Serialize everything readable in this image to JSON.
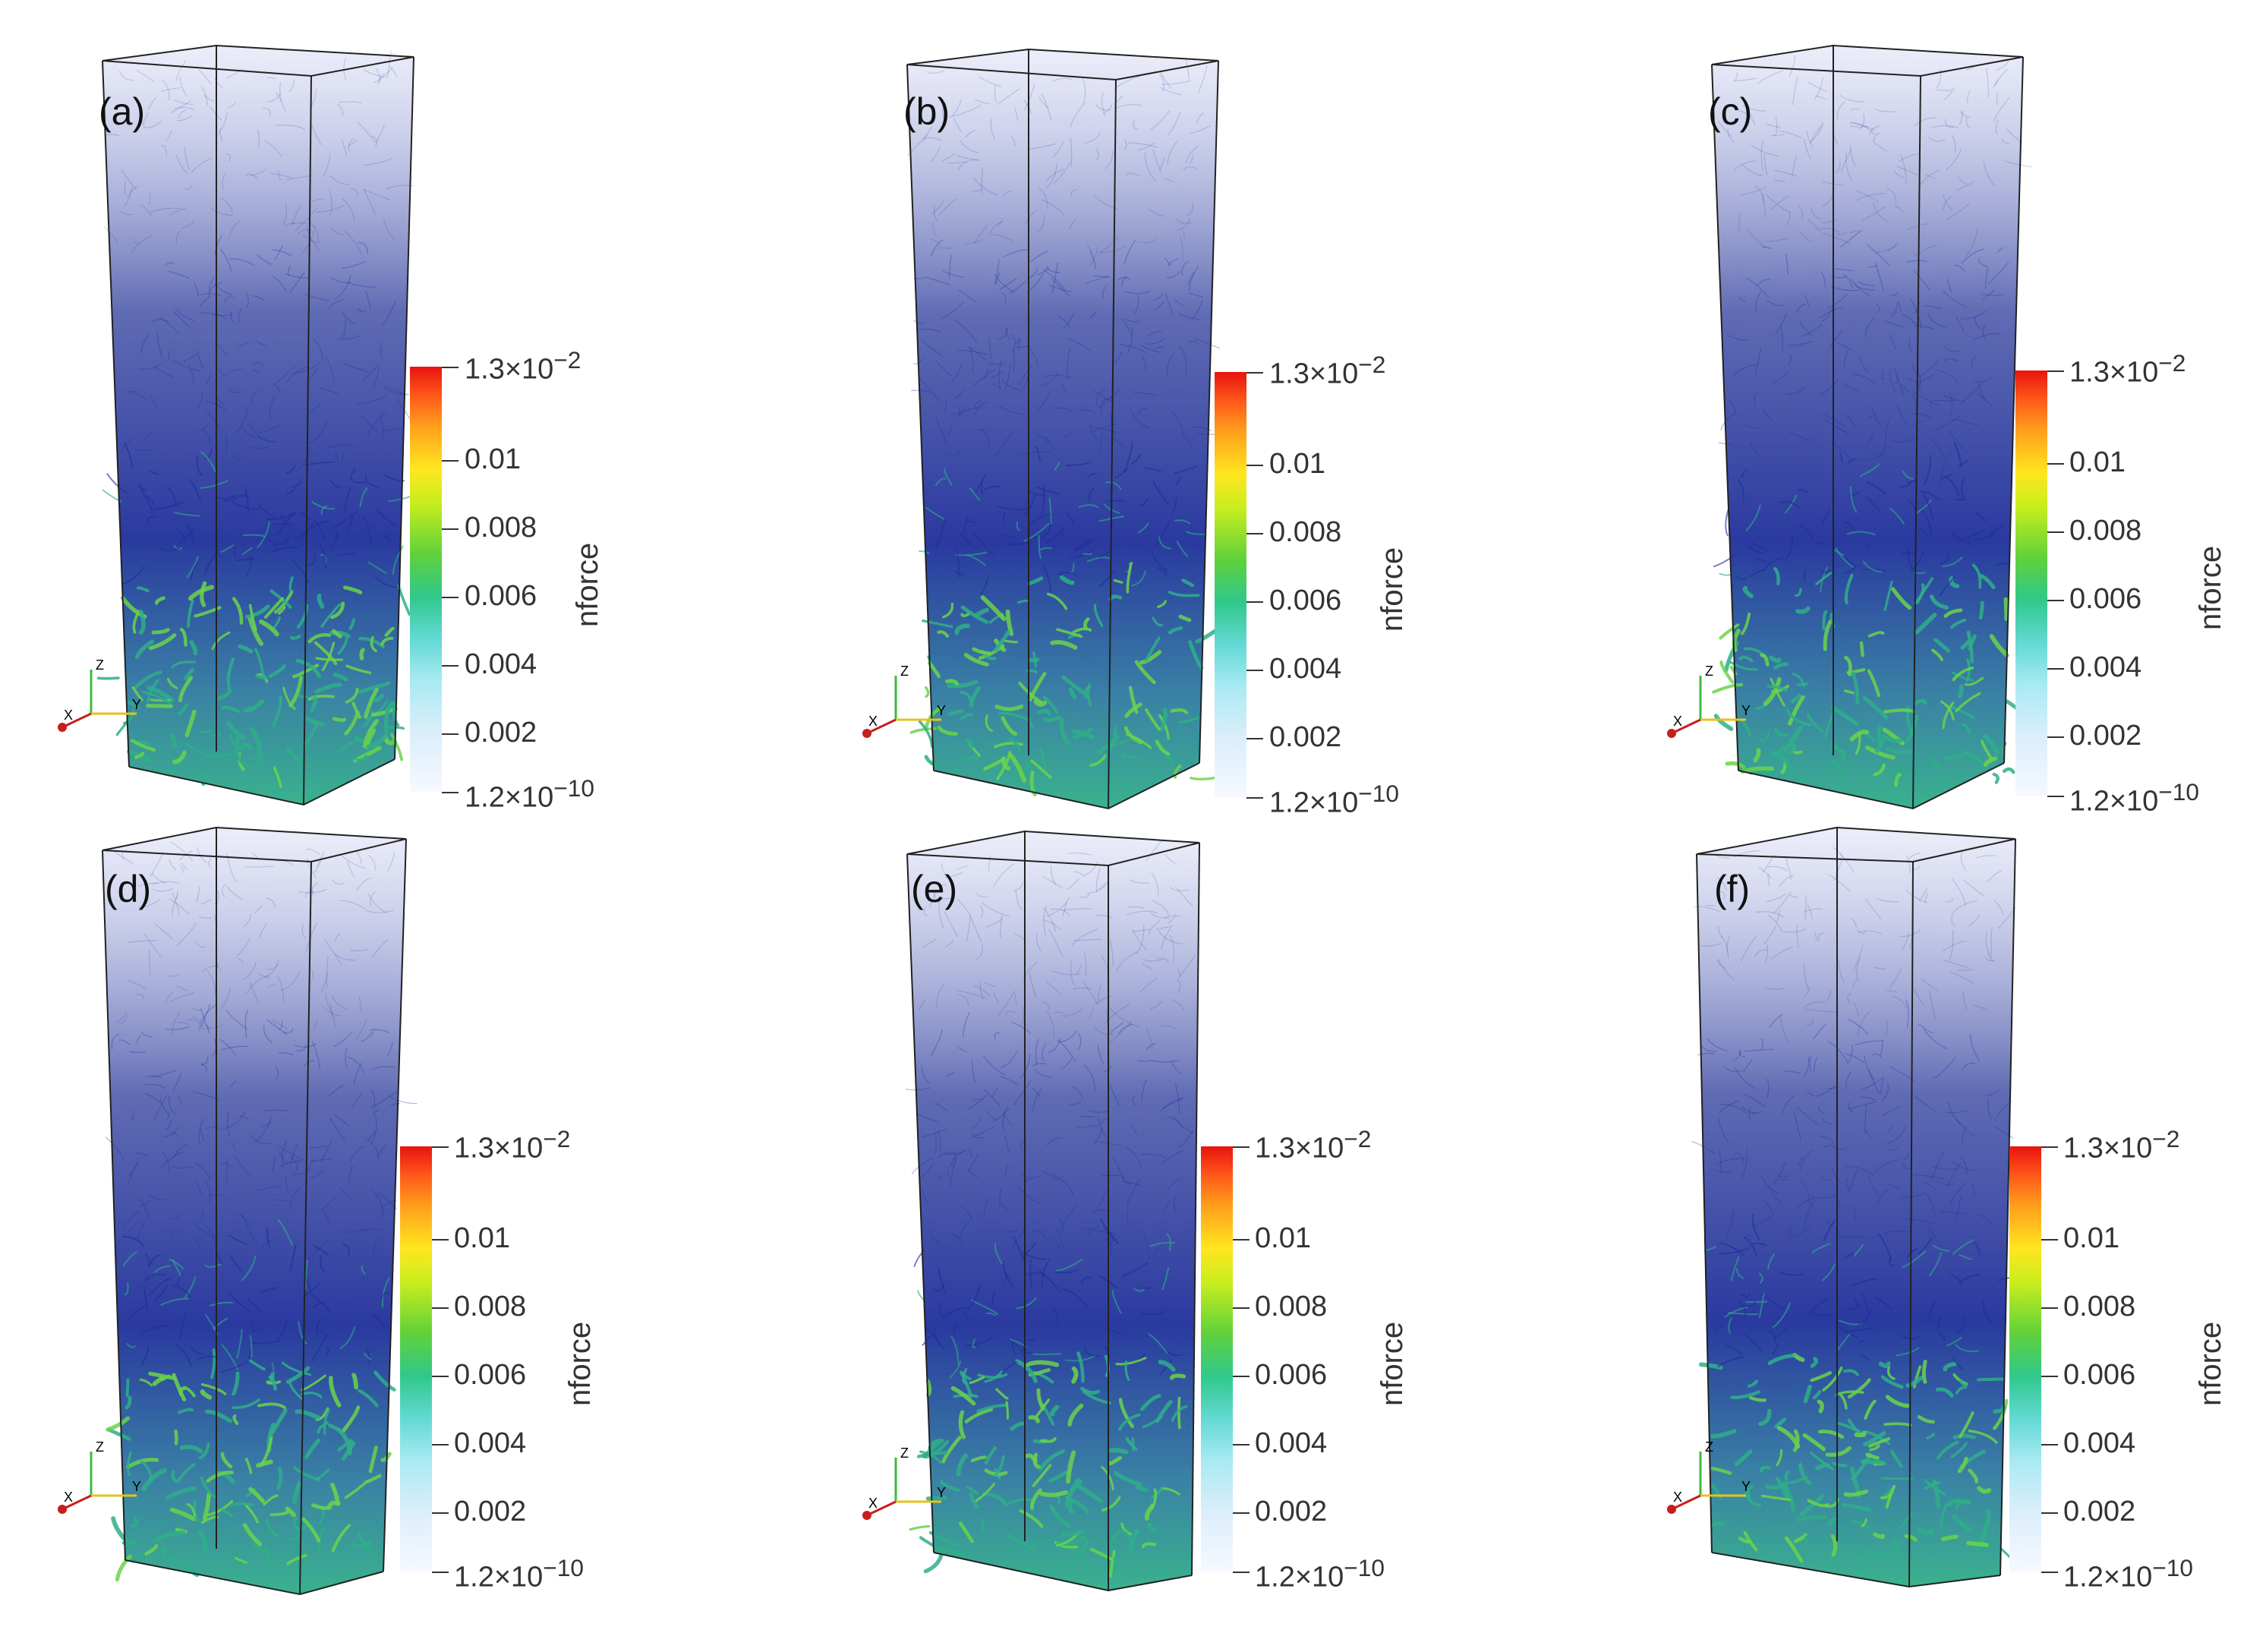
{
  "panels": [
    {
      "label": "(a)"
    },
    {
      "label": "(b)"
    },
    {
      "label": "(c)"
    },
    {
      "label": "(d)"
    },
    {
      "label": "(e)"
    },
    {
      "label": "(f)"
    }
  ],
  "colorbar": {
    "title": "nforce",
    "max_label": "1.3×10",
    "max_exp": "−2",
    "min_label": "1.2×10",
    "min_exp": "−10",
    "ticks": [
      "0.01",
      "0.008",
      "0.006",
      "0.004",
      "0.002"
    ]
  },
  "axes": {
    "x": "X",
    "y": "Y",
    "z": "Z"
  },
  "colors": {
    "network_top": "#2a3a9a",
    "network_dense": "#1f2f9a",
    "network_bottom": "#2fae88",
    "high_force": "#6ad44a",
    "colormap": [
      "#f6f9ff",
      "#a9eaf3",
      "#62d9d4",
      "#30c88a",
      "#60d13a",
      "#ffe61f",
      "#ff9f1c",
      "#e8130f"
    ]
  }
}
